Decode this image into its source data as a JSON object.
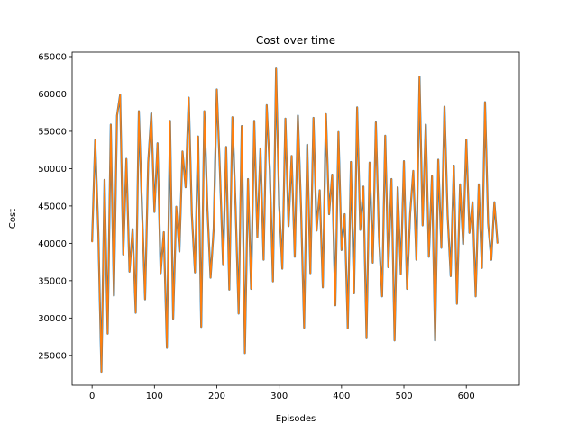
{
  "chart_data": {
    "type": "line",
    "title": "Cost over time",
    "xlabel": "Episodes",
    "ylabel": "Cost",
    "xlim": [
      -32,
      685
    ],
    "ylim": [
      21000,
      65600
    ],
    "xticks": [
      0,
      100,
      200,
      300,
      400,
      500,
      600
    ],
    "yticks": [
      25000,
      30000,
      35000,
      40000,
      45000,
      50000,
      55000,
      60000,
      65000
    ],
    "xtick_labels": [
      "0",
      "100",
      "200",
      "300",
      "400",
      "500",
      "600"
    ],
    "ytick_labels": [
      "25000",
      "30000",
      "35000",
      "40000",
      "45000",
      "50000",
      "55000",
      "60000",
      "65000"
    ],
    "grid": false,
    "colors": {
      "under": "#1f77b4",
      "over": "#ff7f0e"
    },
    "series": [
      {
        "color": "#ff7f0e",
        "x": [
          0,
          5,
          10,
          15,
          20,
          25,
          30,
          35,
          40,
          45,
          50,
          55,
          60,
          65,
          70,
          75,
          80,
          85,
          90,
          95,
          100,
          105,
          110,
          115,
          120,
          125,
          130,
          135,
          140,
          145,
          150,
          155,
          160,
          165,
          170,
          175,
          180,
          185,
          190,
          195,
          200,
          205,
          210,
          215,
          220,
          225,
          230,
          235,
          240,
          245,
          250,
          255,
          260,
          265,
          270,
          275,
          280,
          285,
          290,
          295,
          300,
          305,
          310,
          315,
          320,
          325,
          330,
          335,
          340,
          345,
          350,
          355,
          360,
          365,
          370,
          375,
          380,
          385,
          390,
          395,
          400,
          405,
          410,
          415,
          420,
          425,
          430,
          435,
          440,
          445,
          450,
          455,
          460,
          465,
          470,
          475,
          480,
          485,
          490,
          495,
          500,
          505,
          510,
          515,
          520,
          525,
          530,
          535,
          540,
          545,
          550,
          555,
          560,
          565,
          570,
          575,
          580,
          585,
          590,
          595,
          600,
          605,
          610,
          615,
          620,
          625,
          630,
          635,
          640,
          645,
          650
        ],
        "y": [
          40200,
          53800,
          41500,
          22800,
          48500,
          27900,
          55900,
          33000,
          57100,
          59900,
          38500,
          51300,
          36200,
          41900,
          30700,
          57700,
          44800,
          32500,
          50800,
          57400,
          44200,
          53400,
          36000,
          41500,
          26000,
          56400,
          29900,
          44900,
          38900,
          52300,
          47500,
          59500,
          43800,
          36100,
          54300,
          28800,
          57700,
          44500,
          35400,
          41900,
          60600,
          49700,
          37200,
          52900,
          33800,
          56900,
          45100,
          30600,
          55700,
          25300,
          48600,
          33900,
          56400,
          40800,
          52700,
          37800,
          58500,
          49800,
          34900,
          63400,
          45100,
          36600,
          56700,
          42300,
          51700,
          38200,
          57100,
          44900,
          28700,
          53200,
          36000,
          56800,
          41700,
          47100,
          34100,
          57300,
          43900,
          49200,
          31700,
          54900,
          39100,
          43900,
          28600,
          50900,
          33300,
          58200,
          41800,
          47600,
          27300,
          50800,
          37400,
          56200,
          40900,
          32900,
          54400,
          36800,
          48600,
          27000,
          47500,
          35900,
          51000,
          33900,
          44000,
          49700,
          37800,
          62300,
          42400,
          55900,
          38200,
          49000,
          27000,
          51200,
          39400,
          58300,
          43800,
          35600,
          50400,
          31900,
          47900,
          39900,
          53900,
          41400,
          45500,
          32900,
          47900,
          36700,
          58900,
          42700,
          37800,
          45500,
          40000
        ]
      }
    ]
  }
}
